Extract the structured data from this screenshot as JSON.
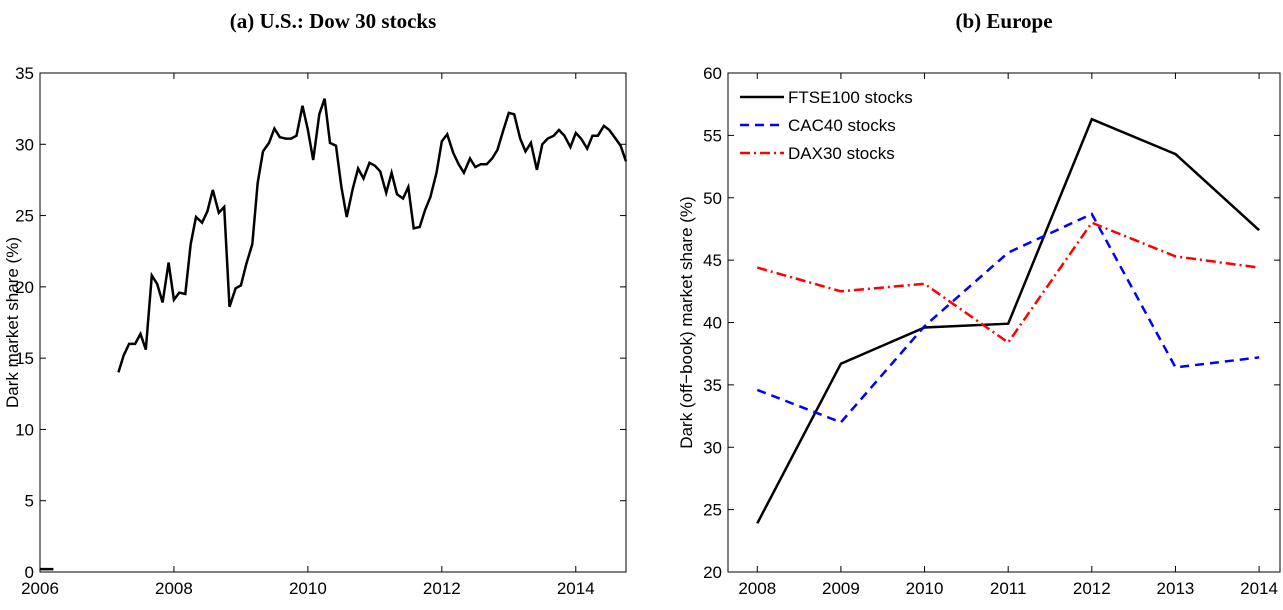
{
  "chart_data": [
    {
      "type": "line",
      "title": "(a) U.S.: Dow 30 stocks",
      "y_label": "Dark market share (%)",
      "xlim": [
        2006,
        2014.75
      ],
      "xticks": [
        2006,
        2008,
        2010,
        2012,
        2014
      ],
      "ylim": [
        0,
        35
      ],
      "yticks": [
        0,
        5,
        10,
        15,
        20,
        25,
        30,
        35
      ],
      "series": [
        {
          "color": "#000000",
          "line_style": "solid",
          "x": [
            2006.0,
            2006.2,
            null,
            2007.17,
            2007.25,
            2007.33,
            2007.42,
            2007.5,
            2007.58,
            2007.67,
            2007.75,
            2007.83,
            2007.92,
            2008.0,
            2008.08,
            2008.17,
            2008.25,
            2008.33,
            2008.42,
            2008.5,
            2008.58,
            2008.67,
            2008.75,
            2008.83,
            2008.92,
            2009.0,
            2009.08,
            2009.17,
            2009.25,
            2009.33,
            2009.42,
            2009.5,
            2009.58,
            2009.67,
            2009.75,
            2009.83,
            2009.92,
            2010.0,
            2010.08,
            2010.17,
            2010.25,
            2010.33,
            2010.42,
            2010.5,
            2010.58,
            2010.67,
            2010.75,
            2010.83,
            2010.92,
            2011.0,
            2011.08,
            2011.17,
            2011.25,
            2011.33,
            2011.42,
            2011.5,
            2011.58,
            2011.67,
            2011.75,
            2011.83,
            2011.92,
            2012.0,
            2012.08,
            2012.17,
            2012.25,
            2012.33,
            2012.42,
            2012.5,
            2012.58,
            2012.67,
            2012.75,
            2012.83,
            2012.92,
            2013.0,
            2013.08,
            2013.17,
            2013.25,
            2013.33,
            2013.42,
            2013.5,
            2013.58,
            2013.67,
            2013.75,
            2013.83,
            2013.92,
            2014.0,
            2014.08,
            2014.17,
            2014.25,
            2014.33,
            2014.42,
            2014.5,
            2014.58,
            2014.67,
            2014.75
          ],
          "values": [
            0.2,
            0.2,
            null,
            14,
            15.2,
            16,
            16,
            16.7,
            15.6,
            20.8,
            20.2,
            18.9,
            21.7,
            19.1,
            19.6,
            19.5,
            23,
            24.9,
            24.5,
            25.3,
            26.8,
            25.2,
            25.6,
            18.6,
            19.9,
            20.1,
            21.6,
            23,
            27.3,
            29.5,
            30.1,
            31.1,
            30.5,
            30.4,
            30.4,
            30.6,
            32.7,
            31,
            28.9,
            32.1,
            33.2,
            30.1,
            29.9,
            27,
            24.9,
            26.9,
            28.3,
            27.6,
            28.7,
            28.5,
            28.1,
            26.6,
            28,
            26.5,
            26.2,
            27,
            24.1,
            24.2,
            25.4,
            26.3,
            28,
            30.2,
            30.7,
            29.4,
            28.6,
            28,
            29,
            28.4,
            28.6,
            28.6,
            29,
            29.6,
            31,
            32.2,
            32.1,
            30.4,
            29.5,
            30.1,
            28.2,
            30,
            30.4,
            30.6,
            31,
            30.6,
            29.8,
            30.8,
            30.4,
            29.7,
            30.6,
            30.6,
            31.3,
            31,
            30.5,
            29.9,
            28.8
          ]
        }
      ]
    },
    {
      "type": "line",
      "title": "(b) Europe",
      "y_label": "Dark (off−book) market share (%)",
      "xlim": [
        2007.65,
        2014.25
      ],
      "xticks": [
        2008,
        2009,
        2010,
        2011,
        2012,
        2013,
        2014
      ],
      "ylim": [
        20,
        60
      ],
      "yticks": [
        20,
        25,
        30,
        35,
        40,
        45,
        50,
        55,
        60
      ],
      "legend": "upper left",
      "series": [
        {
          "name": "FTSE100 stocks",
          "color": "#000000",
          "line_style": "solid",
          "x": [
            2008,
            2009,
            2010,
            2011,
            2012,
            2013,
            2014
          ],
          "values": [
            23.9,
            36.7,
            39.6,
            39.9,
            56.3,
            53.5,
            47.4
          ]
        },
        {
          "name": "CAC40 stocks",
          "color": "#0000ff",
          "line_style": "dashed",
          "x": [
            2008,
            2009,
            2010,
            2011,
            2012,
            2013,
            2014
          ],
          "values": [
            34.6,
            32,
            39.7,
            45.6,
            48.7,
            36.4,
            37.2
          ]
        },
        {
          "name": "DAX30 stocks",
          "color": "#ff0000",
          "line_style": "dashdot",
          "x": [
            2008,
            2009,
            2010,
            2011,
            2012,
            2013,
            2014
          ],
          "values": [
            44.4,
            42.5,
            43.1,
            38.4,
            48,
            45.3,
            44.4
          ]
        }
      ]
    }
  ]
}
